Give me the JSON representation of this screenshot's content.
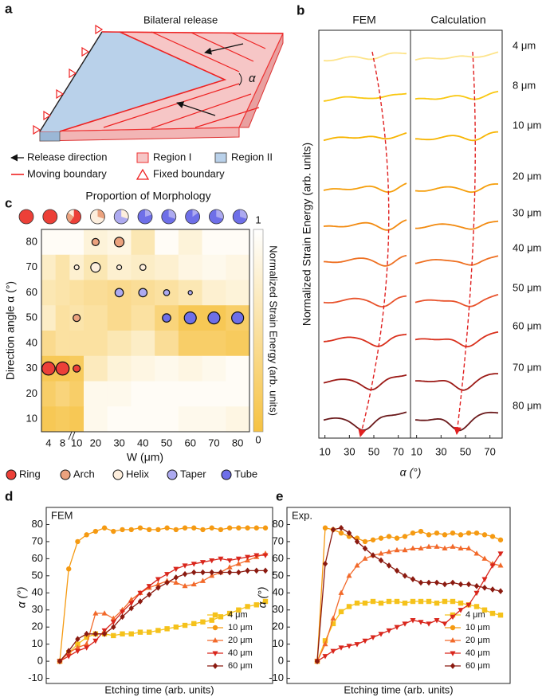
{
  "panel_labels": [
    "a",
    "b",
    "c",
    "d",
    "e"
  ],
  "panel_a": {
    "title": "Bilateral release",
    "angle": "α",
    "legend": [
      "Release direction",
      "Region I",
      "Region II",
      "Moving boundary",
      "Fixed boundary"
    ]
  },
  "panel_b": {
    "columns": [
      "FEM",
      "Calculation"
    ],
    "rows": [
      "4 μm",
      "8 μm",
      "10 μm",
      "20 μm",
      "30 μm",
      "40 μm",
      "50 μm",
      "60 μm",
      "70 μm",
      "80 μm"
    ],
    "ylabel": "Normalized Strain Energy (arb. units)",
    "xlabel": "α (°)",
    "xlim": [
      5,
      80
    ],
    "xticks": [
      10,
      30,
      50,
      70
    ],
    "curve_colors": [
      "#fde48a",
      "#f9c70f",
      "#f7b400",
      "#f59e0b",
      "#f28a10",
      "#ee7022",
      "#e8532c",
      "#d9301c",
      "#9c1a16",
      "#6b1a1c"
    ],
    "arrow_color": "#e02020"
  },
  "chart_data": [
    {
      "type": "heatmap",
      "title": "Proportion of Morphology",
      "xlabel": "W (μm)",
      "ylabel": "Direction angle α (°)",
      "colorbar_label": "Normalized Strain Energy (arb. units)",
      "x": [
        4,
        8,
        10,
        20,
        30,
        40,
        50,
        60,
        70,
        80
      ],
      "y": [
        80,
        70,
        60,
        50,
        40,
        30,
        20,
        10
      ],
      "values": [
        [
          0.95,
          0.95,
          0.95,
          0.8,
          0.85,
          0.6,
          0.95,
          0.8,
          0.95,
          0.95
        ],
        [
          0.7,
          0.55,
          0.75,
          0.6,
          0.75,
          0.7,
          0.75,
          0.85,
          0.9,
          0.85
        ],
        [
          0.6,
          0.55,
          0.5,
          0.45,
          0.4,
          0.45,
          0.5,
          0.6,
          0.75,
          0.8
        ],
        [
          0.7,
          0.5,
          0.55,
          0.5,
          0.4,
          0.5,
          0.3,
          0.1,
          0.1,
          0.2
        ],
        [
          0.4,
          0.5,
          0.5,
          0.5,
          0.6,
          0.7,
          0.45,
          0.2,
          0.2,
          0.15
        ],
        [
          0.1,
          0.1,
          0.15,
          0.65,
          0.8,
          0.85,
          0.9,
          0.85,
          0.9,
          0.95
        ],
        [
          0.2,
          0.3,
          0.2,
          0.9,
          0.9,
          0.95,
          0.95,
          0.95,
          0.95,
          0.95
        ],
        [
          0.1,
          0.15,
          0.1,
          0.9,
          0.95,
          0.95,
          0.95,
          0.9,
          0.9,
          0.85
        ]
      ],
      "colorbar_ticks": [
        0,
        1
      ],
      "colormap": [
        "#f6c242",
        "#ffffff"
      ],
      "morphologies": [
        {
          "name": "Ring",
          "color": "#ec4038"
        },
        {
          "name": "Arch",
          "color": "#eba27e"
        },
        {
          "name": "Helix",
          "color": "#fdeedd"
        },
        {
          "name": "Taper",
          "color": "#adaaf0"
        },
        {
          "name": "Tube",
          "color": "#6e6fe8"
        }
      ],
      "pies": [
        [
          1,
          0,
          0,
          0,
          0
        ],
        [
          1,
          0,
          0,
          0,
          0
        ],
        [
          0.6,
          0.25,
          0.15,
          0,
          0
        ],
        [
          0,
          0.3,
          0.7,
          0,
          0
        ],
        [
          0,
          0,
          0.3,
          0.7,
          0
        ],
        [
          0,
          0,
          0,
          0.2,
          0.8
        ],
        [
          0,
          0,
          0,
          0.3,
          0.7
        ],
        [
          0,
          0,
          0,
          0.15,
          0.85
        ],
        [
          0,
          0,
          0,
          0.3,
          0.7
        ],
        [
          0,
          0,
          0,
          0.3,
          0.7
        ]
      ],
      "markers": [
        {
          "x": 20,
          "y": 80,
          "morphology": "Arch",
          "size": 0.6
        },
        {
          "x": 30,
          "y": 80,
          "morphology": "Arch",
          "size": 0.8
        },
        {
          "x": 10,
          "y": 70,
          "morphology": "Helix",
          "size": 0.4
        },
        {
          "x": 20,
          "y": 70,
          "morphology": "Helix",
          "size": 0.8
        },
        {
          "x": 30,
          "y": 70,
          "morphology": "Helix",
          "size": 0.4
        },
        {
          "x": 40,
          "y": 70,
          "morphology": "Helix",
          "size": 0.5
        },
        {
          "x": 30,
          "y": 60,
          "morphology": "Taper",
          "size": 0.7
        },
        {
          "x": 40,
          "y": 60,
          "morphology": "Taper",
          "size": 0.7
        },
        {
          "x": 50,
          "y": 60,
          "morphology": "Taper",
          "size": 0.5
        },
        {
          "x": 60,
          "y": 60,
          "morphology": "Taper",
          "size": 0.35
        },
        {
          "x": 10,
          "y": 50,
          "morphology": "Arch",
          "size": 0.6
        },
        {
          "x": 50,
          "y": 50,
          "morphology": "Tube",
          "size": 0.7
        },
        {
          "x": 60,
          "y": 50,
          "morphology": "Tube",
          "size": 1
        },
        {
          "x": 70,
          "y": 50,
          "morphology": "Tube",
          "size": 1
        },
        {
          "x": 80,
          "y": 50,
          "morphology": "Tube",
          "size": 1
        },
        {
          "x": 4,
          "y": 30,
          "morphology": "Ring",
          "size": 1.1
        },
        {
          "x": 8,
          "y": 30,
          "morphology": "Ring",
          "size": 1.1
        },
        {
          "x": 10,
          "y": 30,
          "morphology": "Ring",
          "size": 0.6
        }
      ]
    },
    {
      "type": "line",
      "title": "FEM",
      "xlabel": "Etching time (arb. units)",
      "ylabel": "α (°)",
      "ylim": [
        -13,
        90
      ],
      "yticks": [
        -10,
        0,
        10,
        20,
        30,
        40,
        50,
        60,
        70,
        80
      ],
      "series": [
        {
          "name": "4 μm",
          "color": "#f5c21b",
          "marker": "square",
          "values": [
            0,
            5,
            10,
            14,
            16,
            16,
            15,
            16,
            16,
            17,
            17,
            18,
            19,
            20,
            21,
            22,
            23,
            24,
            26,
            28,
            30,
            32,
            33,
            35
          ]
        },
        {
          "name": "10 μm",
          "color": "#f59a12",
          "marker": "circle",
          "values": [
            0,
            54,
            70,
            74,
            76,
            78,
            76,
            77,
            77,
            78,
            77,
            77,
            78,
            77,
            78,
            78,
            77,
            78,
            77,
            78,
            78,
            78,
            78,
            78
          ]
        },
        {
          "name": "20 μm",
          "color": "#f2692a",
          "marker": "triangle-up",
          "values": [
            0,
            5,
            8,
            10,
            28,
            28,
            25,
            30,
            36,
            40,
            43,
            45,
            47,
            46,
            44,
            45,
            47,
            50,
            52,
            55,
            57,
            59,
            61,
            63
          ]
        },
        {
          "name": "40 μm",
          "color": "#d9261c",
          "marker": "triangle-down",
          "values": [
            0,
            3,
            6,
            8,
            12,
            18,
            23,
            29,
            34,
            40,
            44,
            48,
            51,
            54,
            56,
            57,
            58,
            59,
            60,
            59,
            60,
            61,
            62,
            62
          ]
        },
        {
          "name": "60 μm",
          "color": "#8b1a10",
          "marker": "diamond",
          "values": [
            0,
            6,
            13,
            16,
            16,
            16,
            20,
            26,
            31,
            35,
            39,
            43,
            46,
            49,
            51,
            52,
            52,
            52,
            52,
            52,
            52,
            53,
            53,
            53
          ]
        }
      ]
    },
    {
      "type": "line",
      "title": "Exp.",
      "xlabel": "Etching time (arb. units)",
      "ylabel": "α (°)",
      "ylim": [
        -13,
        90
      ],
      "yticks": [
        -10,
        0,
        10,
        20,
        30,
        40,
        50,
        60,
        70,
        80
      ],
      "series": [
        {
          "name": "4 μm",
          "color": "#f5c21b",
          "marker": "square",
          "values": [
            0,
            12,
            22,
            29,
            32,
            34,
            34,
            35,
            34,
            35,
            35,
            34,
            35,
            35,
            35,
            34,
            35,
            35,
            34,
            33,
            32,
            30,
            28,
            27
          ]
        },
        {
          "name": "10 μm",
          "color": "#f59a12",
          "marker": "circle",
          "values": [
            0,
            78,
            77,
            75,
            73,
            72,
            70,
            71,
            72,
            73,
            72,
            73,
            75,
            76,
            74,
            75,
            74,
            75,
            74,
            75,
            75,
            74,
            73,
            71
          ]
        },
        {
          "name": "20 μm",
          "color": "#f2692a",
          "marker": "triangle-up",
          "values": [
            0,
            10,
            25,
            40,
            50,
            56,
            60,
            62,
            63,
            64,
            65,
            65,
            66,
            66,
            67,
            67,
            66,
            67,
            66,
            66,
            63,
            60,
            57,
            56
          ]
        },
        {
          "name": "40 μm",
          "color": "#d9261c",
          "marker": "triangle-down",
          "values": [
            0,
            3,
            6,
            8,
            9,
            10,
            12,
            14,
            16,
            18,
            20,
            22,
            24,
            23,
            22,
            24,
            22,
            26,
            30,
            33,
            40,
            48,
            56,
            63
          ]
        },
        {
          "name": "60 μm",
          "color": "#8b1a10",
          "marker": "diamond",
          "values": [
            0,
            57,
            77,
            78,
            75,
            70,
            66,
            62,
            59,
            56,
            53,
            50,
            48,
            46,
            46,
            46,
            45,
            46,
            45,
            45,
            44,
            43,
            42,
            41
          ]
        }
      ]
    }
  ]
}
